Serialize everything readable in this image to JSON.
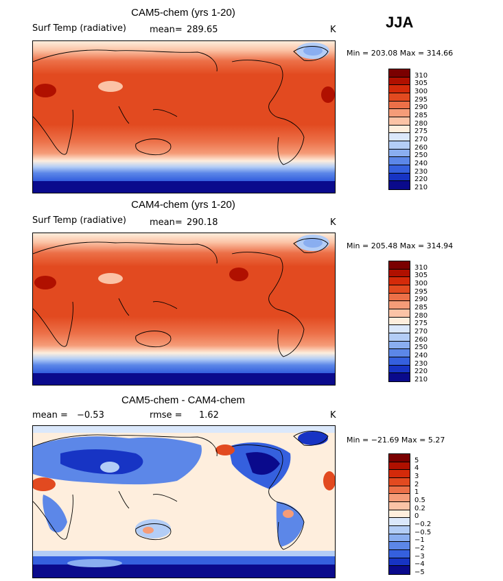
{
  "season": "JJA",
  "panels": [
    {
      "title": "CAM5-chem (yrs 1-20)",
      "left_label": "Surf Temp (radiative)",
      "stat1_label": "mean=",
      "stat1_value": "289.65",
      "units": "K",
      "minmax": "Min = 203.08 Max = 314.66"
    },
    {
      "title": "CAM4-chem (yrs 1-20)",
      "left_label": "Surf Temp (radiative)",
      "stat1_label": "mean=",
      "stat1_value": "290.18",
      "units": "K",
      "minmax": "Min = 205.48 Max = 314.94"
    },
    {
      "title": "CAM5-chem - CAM4-chem",
      "left_label": "mean =",
      "left_value": "−0.53",
      "stat1_label": "rmse =",
      "stat1_value": "1.62",
      "units": "K",
      "minmax": "Min = −21.69 Max =   5.27"
    }
  ],
  "colorbars": {
    "absolute": {
      "labels": [
        "310",
        "305",
        "300",
        "295",
        "290",
        "285",
        "280",
        "275",
        "270",
        "260",
        "250",
        "240",
        "230",
        "220",
        "210"
      ],
      "colors": [
        "#7a0000",
        "#b01000",
        "#d42a0a",
        "#e24a20",
        "#ec7048",
        "#f59c78",
        "#fbc3a6",
        "#feeedd",
        "#dbe8fb",
        "#b3cdf6",
        "#8aaef0",
        "#5c87e8",
        "#3560de",
        "#1734c4",
        "#0a0a8c"
      ]
    },
    "difference": {
      "labels": [
        "5",
        "4",
        "3",
        "2",
        "1",
        "0.5",
        "0.2",
        "0",
        "−0.2",
        "−0.5",
        "−1",
        "−2",
        "−3",
        "−4",
        "−5"
      ],
      "colors": [
        "#7a0000",
        "#b01000",
        "#d42a0a",
        "#e24a20",
        "#ec7048",
        "#f59c78",
        "#fbc3a6",
        "#feeedd",
        "#dbe8fb",
        "#b3cdf6",
        "#8aaef0",
        "#5c87e8",
        "#3560de",
        "#1734c4",
        "#0a0a8c"
      ]
    }
  },
  "chart_data": [
    {
      "type": "heatmap",
      "title": "CAM5-chem (yrs 1-20)",
      "variable": "Surf Temp (radiative)",
      "units": "K",
      "mean": 289.65,
      "min": 203.08,
      "max": 314.66,
      "contour_levels": [
        210,
        220,
        230,
        240,
        250,
        260,
        270,
        275,
        280,
        285,
        290,
        295,
        300,
        305,
        310
      ]
    },
    {
      "type": "heatmap",
      "title": "CAM4-chem (yrs 1-20)",
      "variable": "Surf Temp (radiative)",
      "units": "K",
      "mean": 290.18,
      "min": 205.48,
      "max": 314.94,
      "contour_levels": [
        210,
        220,
        230,
        240,
        250,
        260,
        270,
        275,
        280,
        285,
        290,
        295,
        300,
        305,
        310
      ]
    },
    {
      "type": "heatmap",
      "title": "CAM5-chem - CAM4-chem",
      "units": "K",
      "mean": -0.53,
      "rmse": 1.62,
      "min": -21.69,
      "max": 5.27,
      "contour_levels": [
        -5,
        -4,
        -3,
        -2,
        -1,
        -0.5,
        -0.2,
        0,
        0.2,
        0.5,
        1,
        2,
        3,
        4,
        5
      ]
    }
  ]
}
